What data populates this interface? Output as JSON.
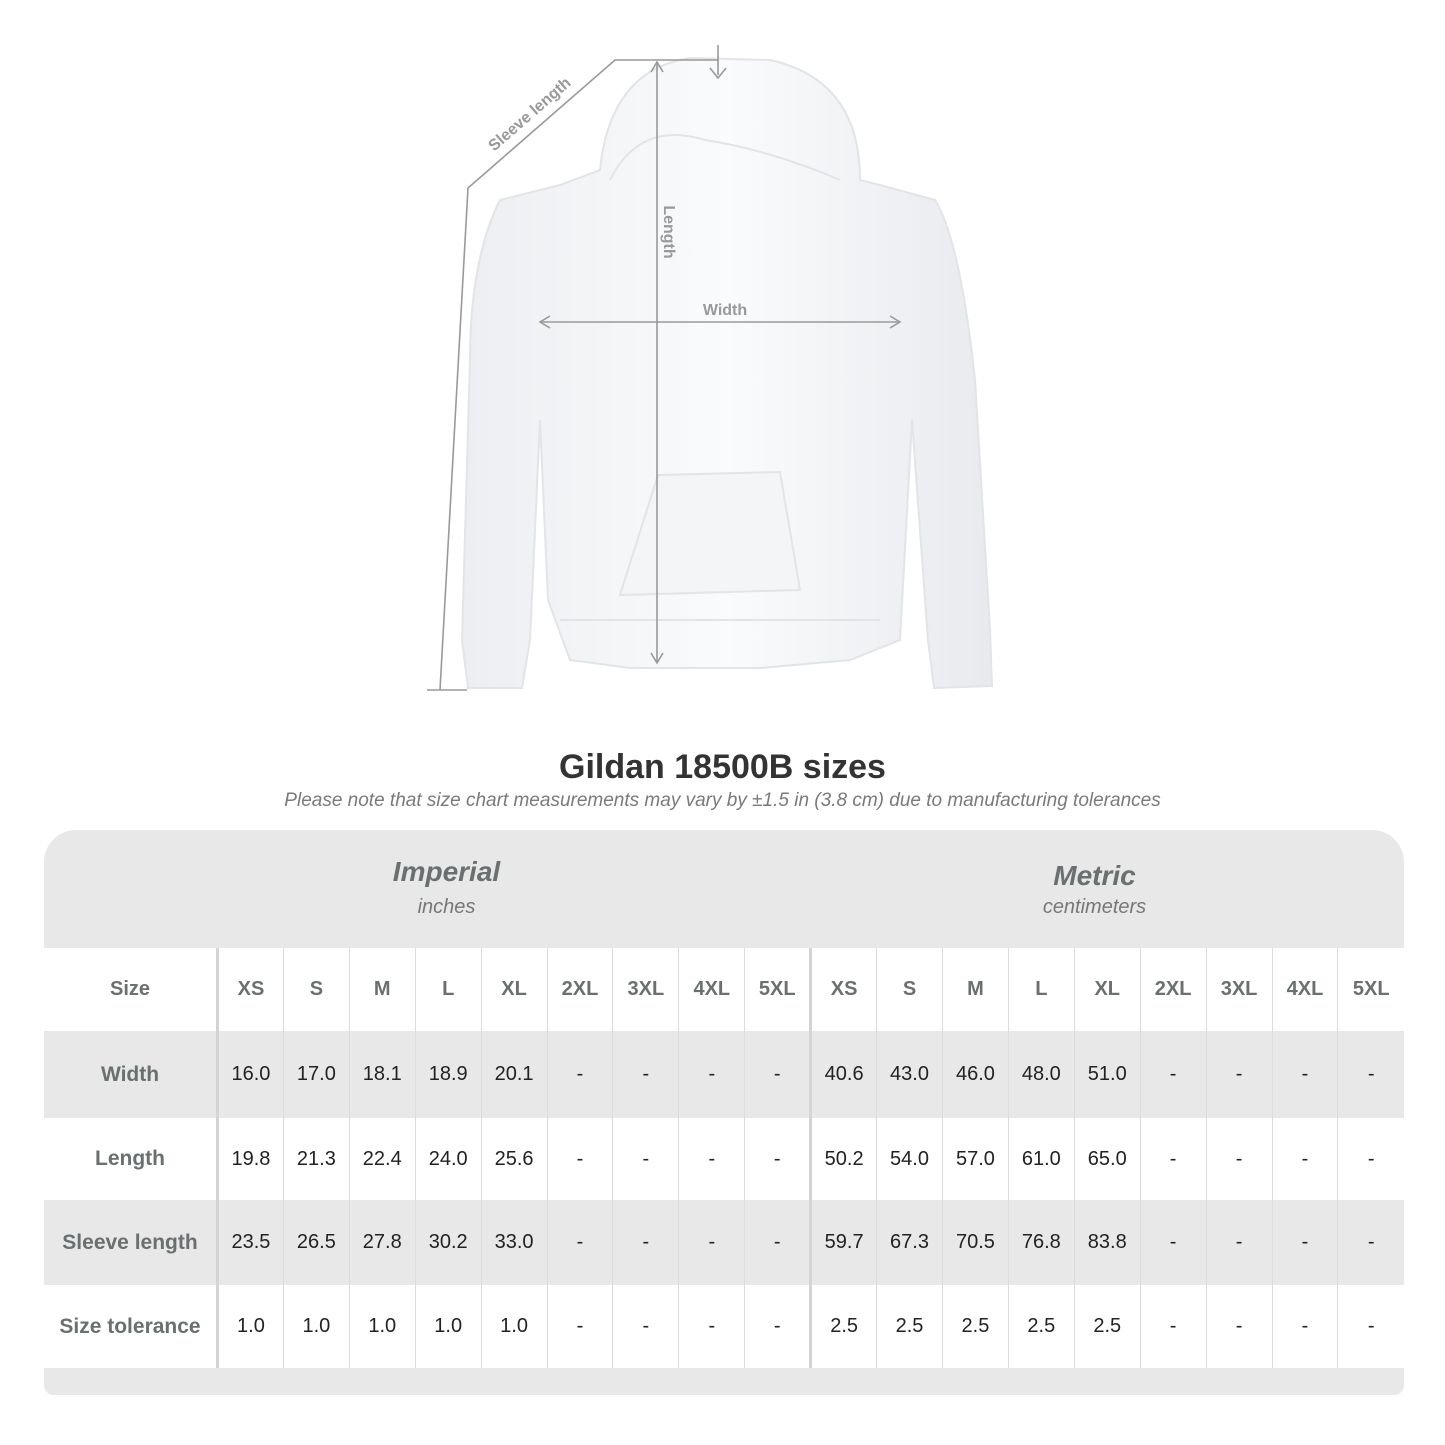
{
  "diagram": {
    "labels": {
      "sleeve": "Sleeve length",
      "length": "Length",
      "width": "Width"
    },
    "garment_color": "#ffffff",
    "line_color": "#999999"
  },
  "title": "Gildan 18500B sizes",
  "note": "Please note that size chart measurements may vary by ±1.5 in (3.8 cm) due to manufacturing tolerances",
  "imperial": {
    "name": "Imperial",
    "unit": "inches"
  },
  "metric": {
    "name": "Metric",
    "unit": "centimeters"
  },
  "table": {
    "size_label": "Size",
    "sizes": [
      "XS",
      "S",
      "M",
      "L",
      "XL",
      "2XL",
      "3XL",
      "4XL",
      "5XL"
    ],
    "rows": [
      {
        "label": "Width",
        "imperial": [
          "16.0",
          "17.0",
          "18.1",
          "18.9",
          "20.1",
          "-",
          "-",
          "-",
          "-"
        ],
        "metric": [
          "40.6",
          "43.0",
          "46.0",
          "48.0",
          "51.0",
          "-",
          "-",
          "-",
          "-"
        ]
      },
      {
        "label": "Length",
        "imperial": [
          "19.8",
          "21.3",
          "22.4",
          "24.0",
          "25.6",
          "-",
          "-",
          "-",
          "-"
        ],
        "metric": [
          "50.2",
          "54.0",
          "57.0",
          "61.0",
          "65.0",
          "-",
          "-",
          "-",
          "-"
        ]
      },
      {
        "label": "Sleeve length",
        "imperial": [
          "23.5",
          "26.5",
          "27.8",
          "30.2",
          "33.0",
          "-",
          "-",
          "-",
          "-"
        ],
        "metric": [
          "59.7",
          "67.3",
          "70.5",
          "76.8",
          "83.8",
          "-",
          "-",
          "-",
          "-"
        ]
      },
      {
        "label": "Size tolerance",
        "imperial": [
          "1.0",
          "1.0",
          "1.0",
          "1.0",
          "1.0",
          "-",
          "-",
          "-",
          "-"
        ],
        "metric": [
          "2.5",
          "2.5",
          "2.5",
          "2.5",
          "2.5",
          "-",
          "-",
          "-",
          "-"
        ]
      }
    ]
  }
}
